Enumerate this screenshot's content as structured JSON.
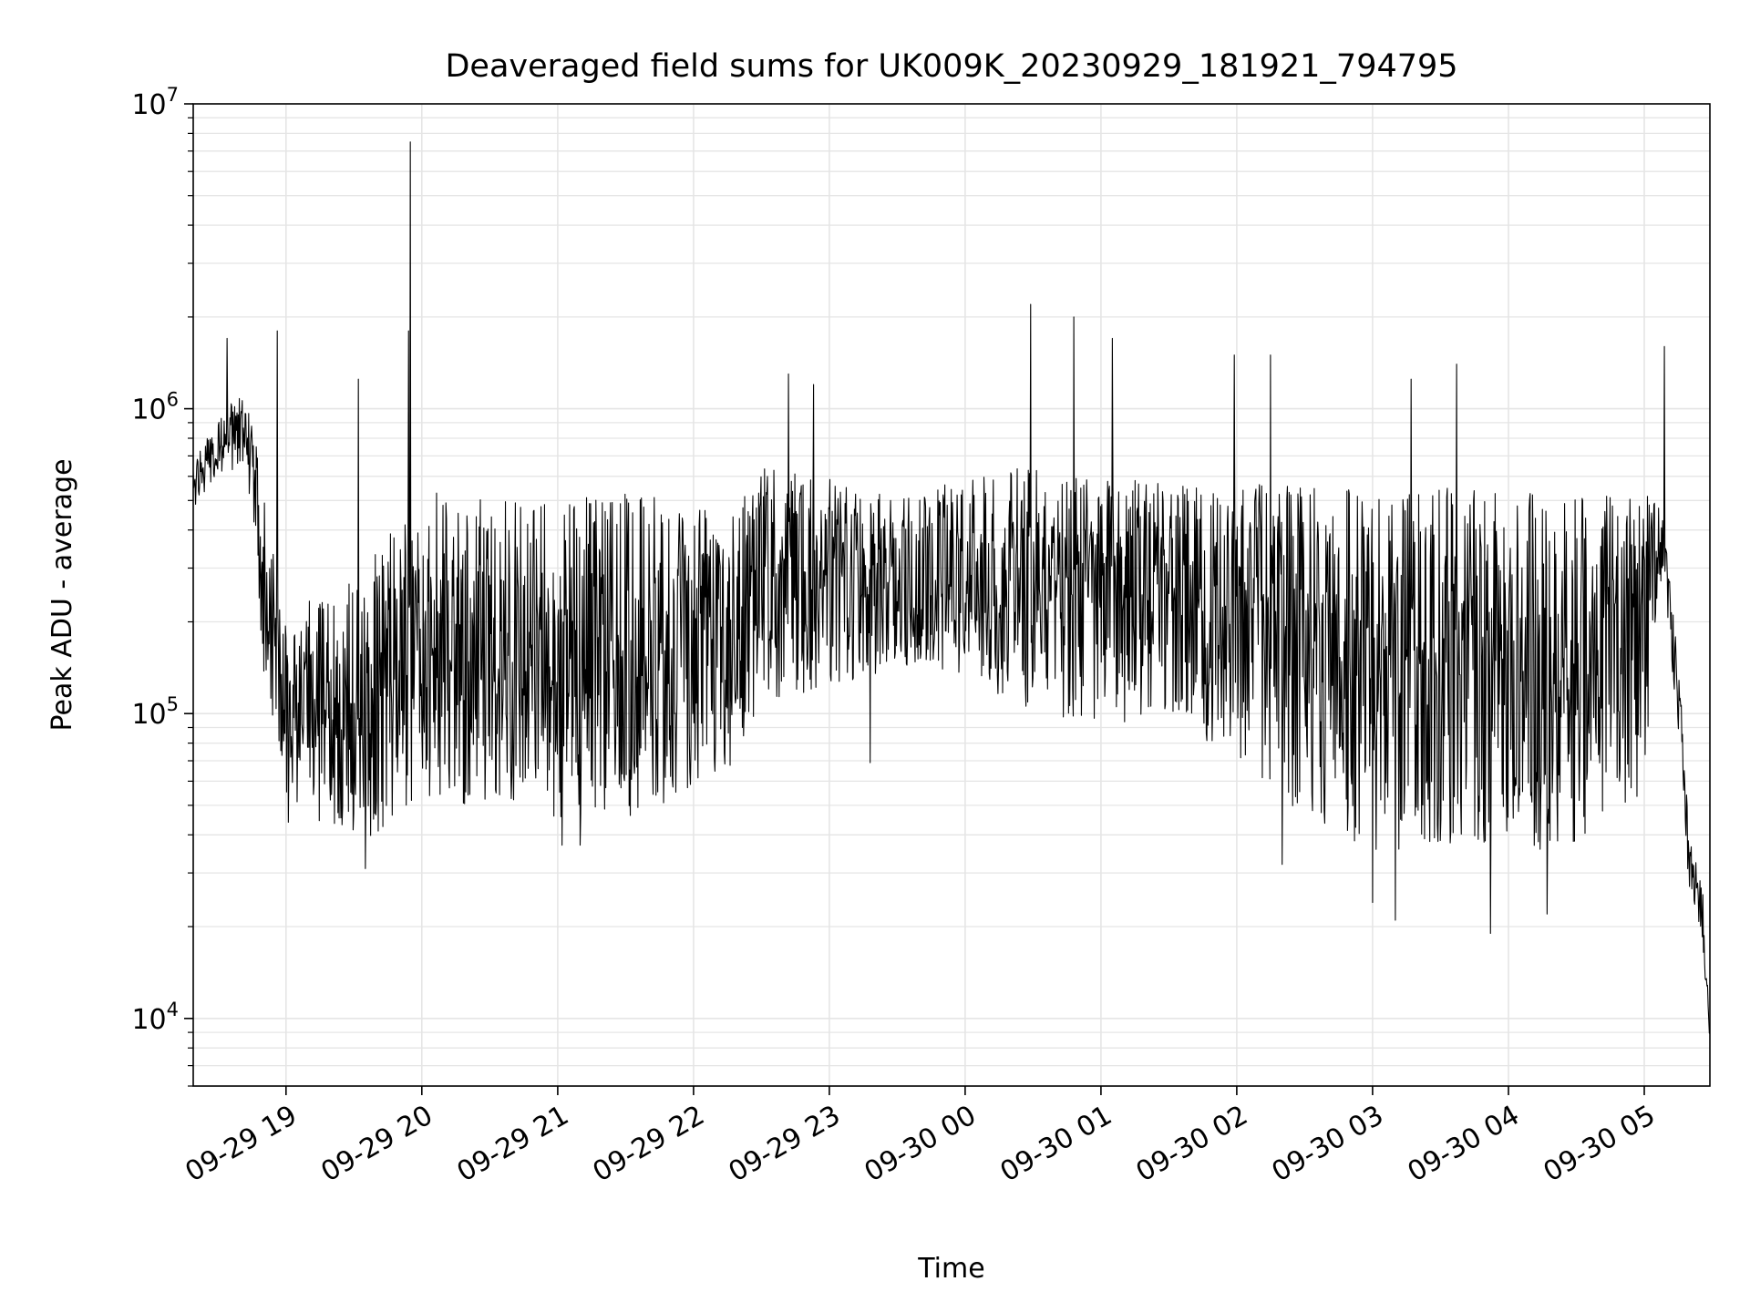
{
  "chart_data": {
    "type": "line",
    "title": "Deaveraged field sums for UK009K_20230929_181921_794795",
    "xlabel": "Time",
    "ylabel": "Peak ADU - average",
    "yscale": "log",
    "grid": true,
    "ylim": [
      6000,
      10000000
    ],
    "xlim": [
      "2023-09-29 18:19",
      "2023-09-30 05:29"
    ],
    "line_color": "#000000",
    "grid_color": "#e5e5e5",
    "x_ticks": [
      {
        "label": "09-29 19",
        "value": "2023-09-29 19:00"
      },
      {
        "label": "09-29 20",
        "value": "2023-09-29 20:00"
      },
      {
        "label": "09-29 21",
        "value": "2023-09-29 21:00"
      },
      {
        "label": "09-29 22",
        "value": "2023-09-29 22:00"
      },
      {
        "label": "09-29 23",
        "value": "2023-09-29 23:00"
      },
      {
        "label": "09-30 00",
        "value": "2023-09-30 00:00"
      },
      {
        "label": "09-30 01",
        "value": "2023-09-30 01:00"
      },
      {
        "label": "09-30 02",
        "value": "2023-09-30 02:00"
      },
      {
        "label": "09-30 03",
        "value": "2023-09-30 03:00"
      },
      {
        "label": "09-30 04",
        "value": "2023-09-30 04:00"
      },
      {
        "label": "09-30 05",
        "value": "2023-09-30 05:00"
      }
    ],
    "y_ticks": [
      {
        "base": "10",
        "exp": "4",
        "value": 10000
      },
      {
        "base": "10",
        "exp": "5",
        "value": 100000
      },
      {
        "base": "10",
        "exp": "6",
        "value": 1000000
      },
      {
        "base": "10",
        "exp": "7",
        "value": 10000000
      }
    ],
    "series": [
      {
        "envelope": [
          {
            "t": "2023-09-29 18:19",
            "low": 480000,
            "mid": 560000,
            "high": 640000
          },
          {
            "t": "2023-09-29 18:30",
            "low": 620000,
            "mid": 760000,
            "high": 950000
          },
          {
            "t": "2023-09-29 18:40",
            "low": 650000,
            "mid": 850000,
            "high": 1100000
          },
          {
            "t": "2023-09-29 18:45",
            "low": 500000,
            "mid": 700000,
            "high": 900000
          },
          {
            "t": "2023-09-29 18:50",
            "low": 150000,
            "mid": 300000,
            "high": 500000
          },
          {
            "t": "2023-09-29 19:00",
            "low": 55000,
            "mid": 100000,
            "high": 200000
          },
          {
            "t": "2023-09-29 19:30",
            "low": 40000,
            "mid": 90000,
            "high": 250000
          },
          {
            "t": "2023-09-29 20:00",
            "low": 55000,
            "mid": 160000,
            "high": 500000
          },
          {
            "t": "2023-09-29 20:30",
            "low": 55000,
            "mid": 130000,
            "high": 450000
          },
          {
            "t": "2023-09-29 21:00",
            "low": 50000,
            "mid": 130000,
            "high": 450000
          },
          {
            "t": "2023-09-29 21:30",
            "low": 50000,
            "mid": 140000,
            "high": 480000
          },
          {
            "t": "2023-09-29 22:00",
            "low": 55000,
            "mid": 140000,
            "high": 450000
          },
          {
            "t": "2023-09-29 22:15",
            "low": 70000,
            "mid": 150000,
            "high": 400000
          },
          {
            "t": "2023-09-29 22:30",
            "low": 120000,
            "mid": 280000,
            "high": 600000
          },
          {
            "t": "2023-09-29 23:00",
            "low": 130000,
            "mid": 280000,
            "high": 550000
          },
          {
            "t": "2023-09-29 23:30",
            "low": 150000,
            "mid": 260000,
            "high": 480000
          },
          {
            "t": "2023-09-30 00:00",
            "low": 140000,
            "mid": 250000,
            "high": 550000
          },
          {
            "t": "2023-09-30 00:30",
            "low": 110000,
            "mid": 260000,
            "high": 600000
          },
          {
            "t": "2023-09-30 01:00",
            "low": 100000,
            "mid": 250000,
            "high": 550000
          },
          {
            "t": "2023-09-30 01:30",
            "low": 100000,
            "mid": 240000,
            "high": 550000
          },
          {
            "t": "2023-09-30 02:00",
            "low": 80000,
            "mid": 220000,
            "high": 550000
          },
          {
            "t": "2023-09-30 02:30",
            "low": 50000,
            "mid": 170000,
            "high": 500000
          },
          {
            "t": "2023-09-30 03:00",
            "low": 40000,
            "mid": 150000,
            "high": 480000
          },
          {
            "t": "2023-09-30 03:30",
            "low": 40000,
            "mid": 160000,
            "high": 500000
          },
          {
            "t": "2023-09-30 04:00",
            "low": 40000,
            "mid": 160000,
            "high": 480000
          },
          {
            "t": "2023-09-30 04:30",
            "low": 40000,
            "mid": 160000,
            "high": 480000
          },
          {
            "t": "2023-09-30 05:00",
            "low": 60000,
            "mid": 250000,
            "high": 500000
          },
          {
            "t": "2023-09-30 05:08",
            "low": 300000,
            "mid": 360000,
            "high": 450000
          },
          {
            "t": "2023-09-30 05:15",
            "low": 90000,
            "mid": 120000,
            "high": 150000
          },
          {
            "t": "2023-09-30 05:20",
            "low": 26000,
            "mid": 33000,
            "high": 40000
          },
          {
            "t": "2023-09-30 05:26",
            "low": 17000,
            "mid": 21000,
            "high": 25000
          },
          {
            "t": "2023-09-30 05:29",
            "low": 8000,
            "mid": 8500,
            "high": 9000
          }
        ],
        "spikes": [
          {
            "t": "2023-09-29 19:55",
            "value": 7500000
          },
          {
            "t": "2023-09-29 19:54",
            "value": 1800000
          },
          {
            "t": "2023-09-29 18:56",
            "value": 1800000
          },
          {
            "t": "2023-09-29 18:34",
            "value": 1700000
          },
          {
            "t": "2023-09-29 19:32",
            "value": 1250000
          },
          {
            "t": "2023-09-29 22:42",
            "value": 1300000
          },
          {
            "t": "2023-09-29 22:53",
            "value": 1200000
          },
          {
            "t": "2023-09-30 00:29",
            "value": 2200000
          },
          {
            "t": "2023-09-30 00:48",
            "value": 2000000
          },
          {
            "t": "2023-09-30 01:05",
            "value": 1700000
          },
          {
            "t": "2023-09-30 01:59",
            "value": 1500000
          },
          {
            "t": "2023-09-30 02:15",
            "value": 1500000
          },
          {
            "t": "2023-09-30 03:17",
            "value": 1250000
          },
          {
            "t": "2023-09-30 03:37",
            "value": 1400000
          },
          {
            "t": "2023-09-30 05:09",
            "value": 1600000
          },
          {
            "t": "2023-09-29 19:35",
            "value": 31000
          },
          {
            "t": "2023-09-29 19:01",
            "value": 44000
          },
          {
            "t": "2023-09-29 21:02",
            "value": 37000
          },
          {
            "t": "2023-09-29 21:10",
            "value": 37000
          },
          {
            "t": "2023-09-29 23:18",
            "value": 69000
          },
          {
            "t": "2023-09-30 02:20",
            "value": 32000
          },
          {
            "t": "2023-09-30 03:10",
            "value": 21000
          },
          {
            "t": "2023-09-30 03:00",
            "value": 24000
          },
          {
            "t": "2023-09-30 03:52",
            "value": 19000
          },
          {
            "t": "2023-09-30 04:17",
            "value": 22000
          }
        ]
      }
    ]
  }
}
